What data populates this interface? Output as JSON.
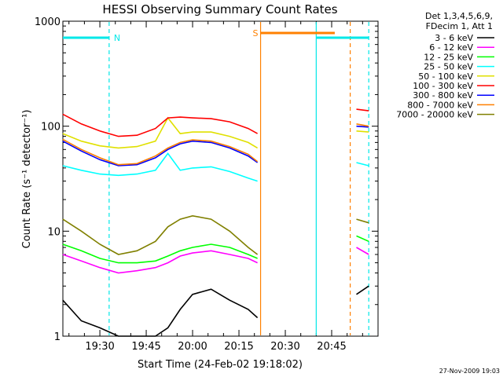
{
  "chart_data": {
    "type": "line",
    "title": "HESSI Observing Summary Count Rates",
    "xlabel": "Start Time (24-Feb-02 19:18:02)",
    "ylabel": "Count Rate (s⁻¹ detector⁻¹)",
    "y_scale": "log",
    "ylim": [
      1,
      1000
    ],
    "y_ticks": [
      "1",
      "10",
      "100",
      "1000"
    ],
    "xlim": [
      "19:18:02",
      "21:00:00"
    ],
    "x_ticks": [
      "19:30",
      "19:45",
      "20:00",
      "20:15",
      "20:30",
      "20:45"
    ],
    "legend_header": [
      "Det 1,3,4,5,6,9,",
      "FDecim 1, Att 1"
    ],
    "legend_position": "outside-right",
    "timestamp": "27-Nov-2009 19:03",
    "attenuator_bars": [
      {
        "label": "N",
        "start": "19:18",
        "end": "19:33",
        "color": "#00e8e8"
      },
      {
        "label": "S",
        "start": "20:22",
        "end": "20:46",
        "color": "#ff8000"
      },
      {
        "label": "",
        "start": "20:40",
        "end": "20:57",
        "color": "#00e8e8"
      }
    ],
    "region_markers": [
      {
        "time": "19:33",
        "style": "dashed",
        "color": "#00e8e8"
      },
      {
        "time": "20:22",
        "style": "solid",
        "color": "#ff8000"
      },
      {
        "time": "20:40",
        "style": "solid",
        "color": "#00e8e8"
      },
      {
        "time": "20:51",
        "style": "dashed",
        "color": "#ff8000"
      },
      {
        "time": "20:57",
        "style": "dashed",
        "color": "#00e8e8"
      }
    ],
    "x": [
      "19:18",
      "19:24",
      "19:30",
      "19:36",
      "19:42",
      "19:48",
      "19:52",
      "19:56",
      "20:00",
      "20:06",
      "20:12",
      "20:18",
      "20:21",
      "20:53",
      "20:57"
    ],
    "series": [
      {
        "name": "3 - 6 keV",
        "color": "#000000",
        "values": [
          2.2,
          1.4,
          1.2,
          1.0,
          1.0,
          1.0,
          1.2,
          1.8,
          2.5,
          2.8,
          2.2,
          1.8,
          1.5,
          2.5,
          3.0
        ]
      },
      {
        "name": "6 - 12 keV",
        "color": "#ff00ff",
        "values": [
          6.0,
          5.2,
          4.5,
          4.0,
          4.2,
          4.5,
          5.0,
          5.8,
          6.2,
          6.5,
          6.0,
          5.5,
          5.0,
          7.0,
          6.0
        ]
      },
      {
        "name": "12 - 25 keV",
        "color": "#00ff00",
        "values": [
          7.5,
          6.5,
          5.5,
          5.0,
          5.0,
          5.2,
          5.8,
          6.5,
          7.0,
          7.5,
          7.0,
          6.0,
          5.5,
          9.0,
          8.0
        ]
      },
      {
        "name": "25 - 50 keV",
        "color": "#00ffff",
        "values": [
          42,
          38,
          35,
          34,
          35,
          38,
          55,
          38,
          40,
          41,
          37,
          32,
          30,
          45,
          42
        ]
      },
      {
        "name": "50 - 100 keV",
        "color": "#e0e000",
        "values": [
          85,
          72,
          65,
          62,
          64,
          72,
          120,
          85,
          88,
          88,
          80,
          70,
          62,
          90,
          88
        ]
      },
      {
        "name": "100 - 300 keV",
        "color": "#ff0000",
        "values": [
          130,
          105,
          90,
          80,
          82,
          95,
          120,
          122,
          120,
          118,
          110,
          95,
          85,
          145,
          140
        ]
      },
      {
        "name": "300 - 800 keV",
        "color": "#0000ff",
        "values": [
          72,
          58,
          48,
          42,
          43,
          50,
          60,
          68,
          72,
          70,
          62,
          52,
          45,
          100,
          98
        ]
      },
      {
        "name": "800 - 7000 keV",
        "color": "#ff8000",
        "values": [
          75,
          60,
          50,
          43,
          44,
          52,
          62,
          70,
          74,
          72,
          64,
          54,
          46,
          105,
          100
        ]
      },
      {
        "name": "7000 - 20000 keV",
        "color": "#808000",
        "values": [
          13,
          10,
          7.5,
          6.0,
          6.5,
          8.0,
          11,
          13,
          14,
          13,
          10,
          7,
          6,
          13,
          12
        ]
      }
    ]
  }
}
